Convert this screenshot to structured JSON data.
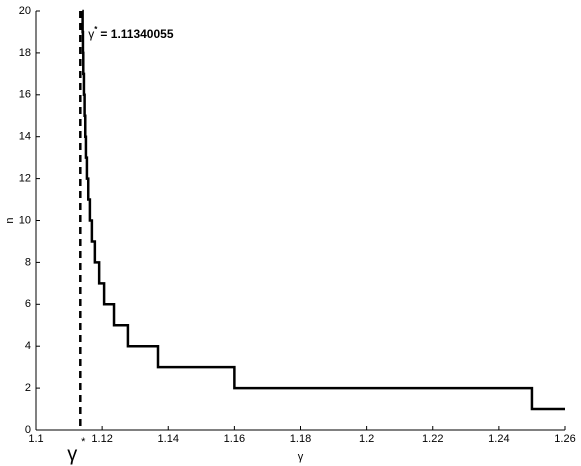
{
  "chart_data": {
    "type": "line",
    "xlabel": "γ",
    "ylabel": "n",
    "x": [
      1.114,
      1.1141,
      1.1141,
      1.1142,
      1.1142,
      1.1143,
      1.1143,
      1.1145,
      1.1145,
      1.1147,
      1.1147,
      1.1149,
      1.1149,
      1.1151,
      1.1151,
      1.1154,
      1.1154,
      1.1158,
      1.1158,
      1.1163,
      1.1163,
      1.1169,
      1.1169,
      1.1178,
      1.1178,
      1.1191,
      1.1191,
      1.1206,
      1.1206,
      1.1236,
      1.1236,
      1.1278,
      1.1278,
      1.1369,
      1.1369,
      1.16,
      1.16,
      1.25,
      1.25,
      1.26
    ],
    "series": [
      {
        "color": "#000000",
        "values": [
          20,
          20,
          19,
          19,
          18,
          18,
          17,
          17,
          16,
          16,
          15,
          15,
          14,
          14,
          13,
          13,
          12,
          12,
          11,
          11,
          10,
          10,
          9,
          9,
          8,
          8,
          7,
          7,
          6,
          6,
          5,
          5,
          4,
          4,
          3,
          3,
          2,
          2,
          1,
          1
        ]
      }
    ],
    "gamma_star": 1.11340055,
    "annotation": {
      "symbol": "γ",
      "superscript": "*",
      "text": "= 1.11340055"
    },
    "axis_marker": {
      "symbol": "γ",
      "superscript": "*"
    },
    "xlim": [
      1.1,
      1.26
    ],
    "xticks": [
      1.1,
      1.12,
      1.14,
      1.16,
      1.18,
      1.2,
      1.22,
      1.24,
      1.26
    ],
    "ylim": [
      0,
      20
    ],
    "yticks": [
      0,
      2,
      4,
      6,
      8,
      10,
      12,
      14,
      16,
      18,
      20
    ]
  }
}
